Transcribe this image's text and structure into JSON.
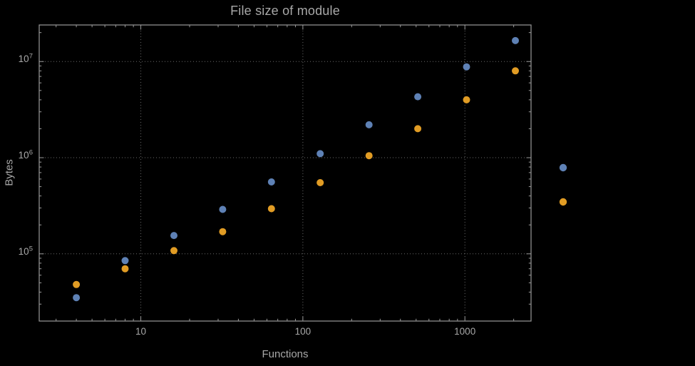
{
  "page": {
    "background_color": "#000000"
  },
  "chart_data": {
    "type": "scatter",
    "title": "File size of module",
    "xlabel": "Functions",
    "ylabel": "Bytes",
    "x_scale": "log",
    "y_scale": "log",
    "xlim": [
      2.36,
      2560
    ],
    "ylim": [
      20000,
      24000000
    ],
    "grid": "dotted",
    "gridline_color": "#6a6a6a",
    "frame_color": "#9a9a9a",
    "text_color": "#a8a8a8",
    "x_gridlines": [
      10,
      100,
      1000
    ],
    "y_gridlines": [
      100000,
      1000000,
      10000000
    ],
    "x_ticks": [
      {
        "value": 10,
        "label": "10"
      },
      {
        "value": 100,
        "label": "100"
      },
      {
        "value": 1000,
        "label": "1000"
      }
    ],
    "y_ticks": [
      {
        "value": 100000,
        "base": "10",
        "exp": "5"
      },
      {
        "value": 1000000,
        "base": "10",
        "exp": "6"
      },
      {
        "value": 10000000,
        "base": "10",
        "exp": "7"
      }
    ],
    "series": [
      {
        "name": "series-1",
        "color": "#5e81b5",
        "marker": "circle",
        "x": [
          4,
          8,
          16,
          32,
          64,
          128,
          256,
          512,
          1024,
          2048
        ],
        "y": [
          35000,
          85000,
          155000,
          290000,
          560000,
          1100000,
          2200000,
          4300000,
          8800000,
          16500000
        ]
      },
      {
        "name": "series-2",
        "color": "#e19c24",
        "marker": "circle",
        "x": [
          4,
          8,
          16,
          32,
          64,
          128,
          256,
          512,
          1024,
          2048
        ],
        "y": [
          48000,
          70000,
          108000,
          170000,
          295000,
          550000,
          1050000,
          2000000,
          4000000,
          8000000
        ]
      }
    ],
    "legend": {
      "position": "outside-right",
      "labels_visible": false,
      "entries": [
        {
          "color": "#5e81b5"
        },
        {
          "color": "#e19c24"
        }
      ]
    }
  }
}
